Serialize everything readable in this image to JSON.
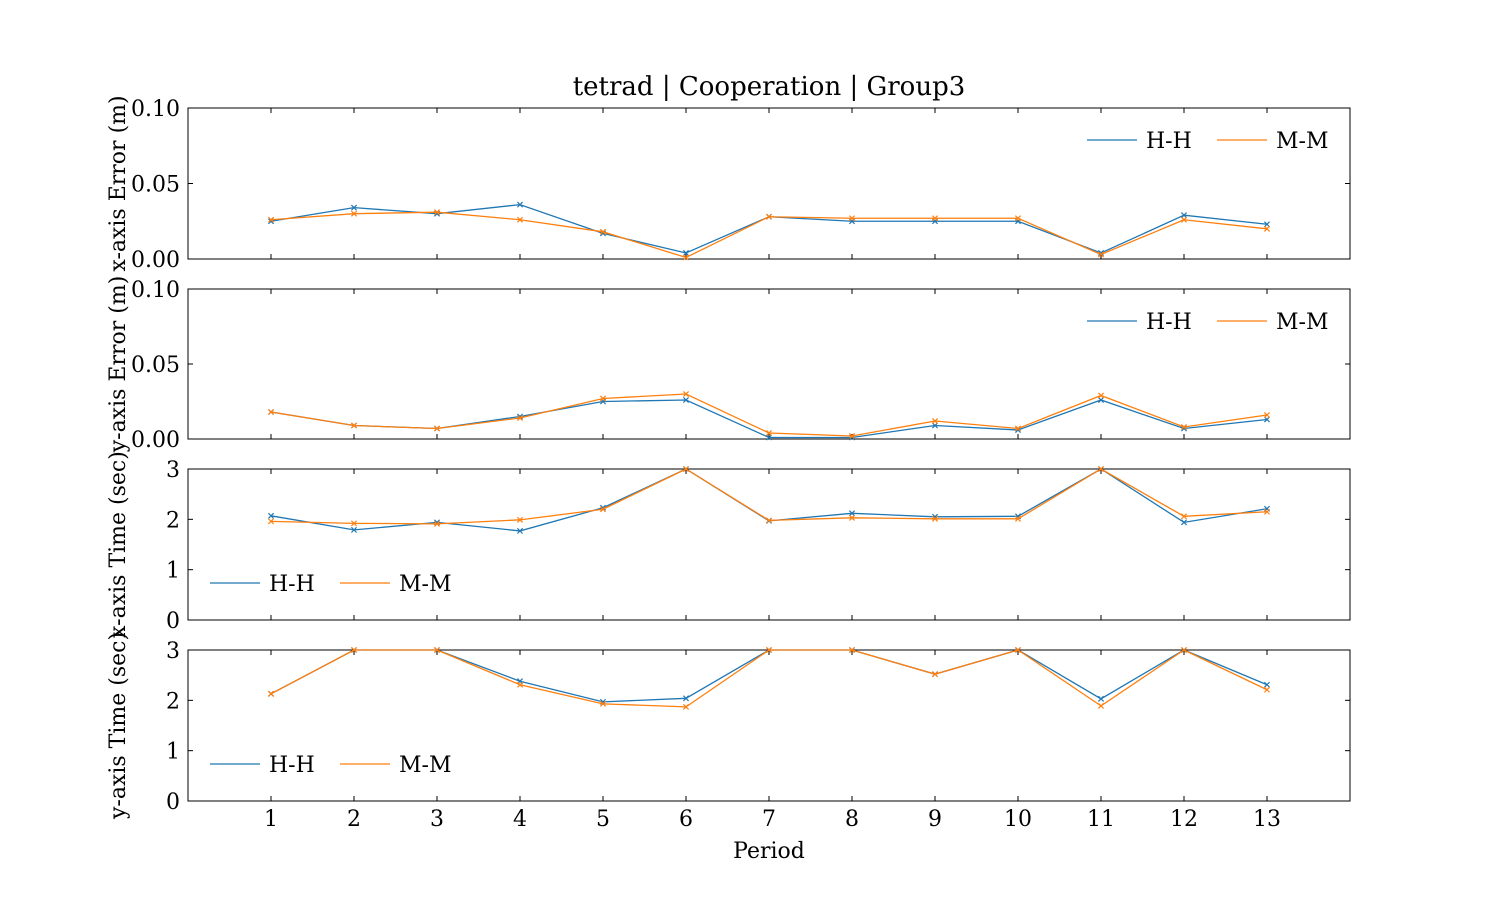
{
  "chart_data": {
    "type": "line",
    "title": "tetrad | Cooperation | Group3",
    "xlabel": "Period",
    "x": [
      1,
      2,
      3,
      4,
      5,
      6,
      7,
      8,
      9,
      10,
      11,
      12,
      13
    ],
    "xlim": [
      0,
      14
    ],
    "grid": false,
    "colors": {
      "H-H": "#1f77b4",
      "M-M": "#ff7f0e"
    },
    "marker": "x",
    "panels": [
      {
        "ylabel": "x-axis Error (m)",
        "ylim": [
          0,
          0.1
        ],
        "yticks": [
          "0.00",
          "0.05",
          "0.10"
        ],
        "ytick_values": [
          0,
          0.05,
          0.1
        ],
        "legend_position": "upper-right",
        "series": [
          {
            "name": "H-H",
            "values": [
              0.025,
              0.034,
              0.03,
              0.036,
              0.017,
              0.004,
              0.028,
              0.025,
              0.025,
              0.025,
              0.004,
              0.029,
              0.023
            ]
          },
          {
            "name": "M-M",
            "values": [
              0.026,
              0.03,
              0.031,
              0.026,
              0.018,
              0.001,
              0.028,
              0.027,
              0.027,
              0.027,
              0.003,
              0.026,
              0.02
            ]
          }
        ]
      },
      {
        "ylabel": "y-axis Error (m)",
        "ylim": [
          0,
          0.1
        ],
        "yticks": [
          "0.00",
          "0.05",
          "0.10"
        ],
        "ytick_values": [
          0,
          0.05,
          0.1
        ],
        "legend_position": "upper-right",
        "series": [
          {
            "name": "H-H",
            "values": [
              0.018,
              0.009,
              0.007,
              0.015,
              0.025,
              0.026,
              0.001,
              0.001,
              0.009,
              0.006,
              0.026,
              0.007,
              0.013
            ]
          },
          {
            "name": "M-M",
            "values": [
              0.018,
              0.009,
              0.007,
              0.014,
              0.027,
              0.03,
              0.004,
              0.002,
              0.012,
              0.007,
              0.029,
              0.008,
              0.016
            ]
          }
        ]
      },
      {
        "ylabel": "x-axis Time (sec)",
        "ylim": [
          0,
          3
        ],
        "yticks": [
          "0",
          "1",
          "2",
          "3"
        ],
        "ytick_values": [
          0,
          1,
          2,
          3
        ],
        "legend_position": "lower-left",
        "series": [
          {
            "name": "H-H",
            "values": [
              2.07,
              1.79,
              1.94,
              1.77,
              2.23,
              3.0,
              1.97,
              2.12,
              2.05,
              2.06,
              3.0,
              1.94,
              2.21
            ]
          },
          {
            "name": "M-M",
            "values": [
              1.96,
              1.92,
              1.91,
              1.99,
              2.2,
              3.0,
              1.98,
              2.03,
              2.01,
              2.01,
              3.0,
              2.06,
              2.15
            ]
          }
        ]
      },
      {
        "ylabel": "y-axis Time (sec)",
        "ylim": [
          0,
          3
        ],
        "yticks": [
          "0",
          "1",
          "2",
          "3"
        ],
        "ytick_values": [
          0,
          1,
          2,
          3
        ],
        "legend_position": "lower-left",
        "series": [
          {
            "name": "H-H",
            "values": [
              2.13,
              3.0,
              3.0,
              2.38,
              1.97,
              2.04,
              3.0,
              3.0,
              2.52,
              3.0,
              2.03,
              3.0,
              2.31
            ]
          },
          {
            "name": "M-M",
            "values": [
              2.13,
              3.0,
              3.0,
              2.31,
              1.93,
              1.87,
              3.0,
              3.0,
              2.52,
              3.0,
              1.89,
              3.0,
              2.21
            ]
          }
        ]
      }
    ]
  }
}
